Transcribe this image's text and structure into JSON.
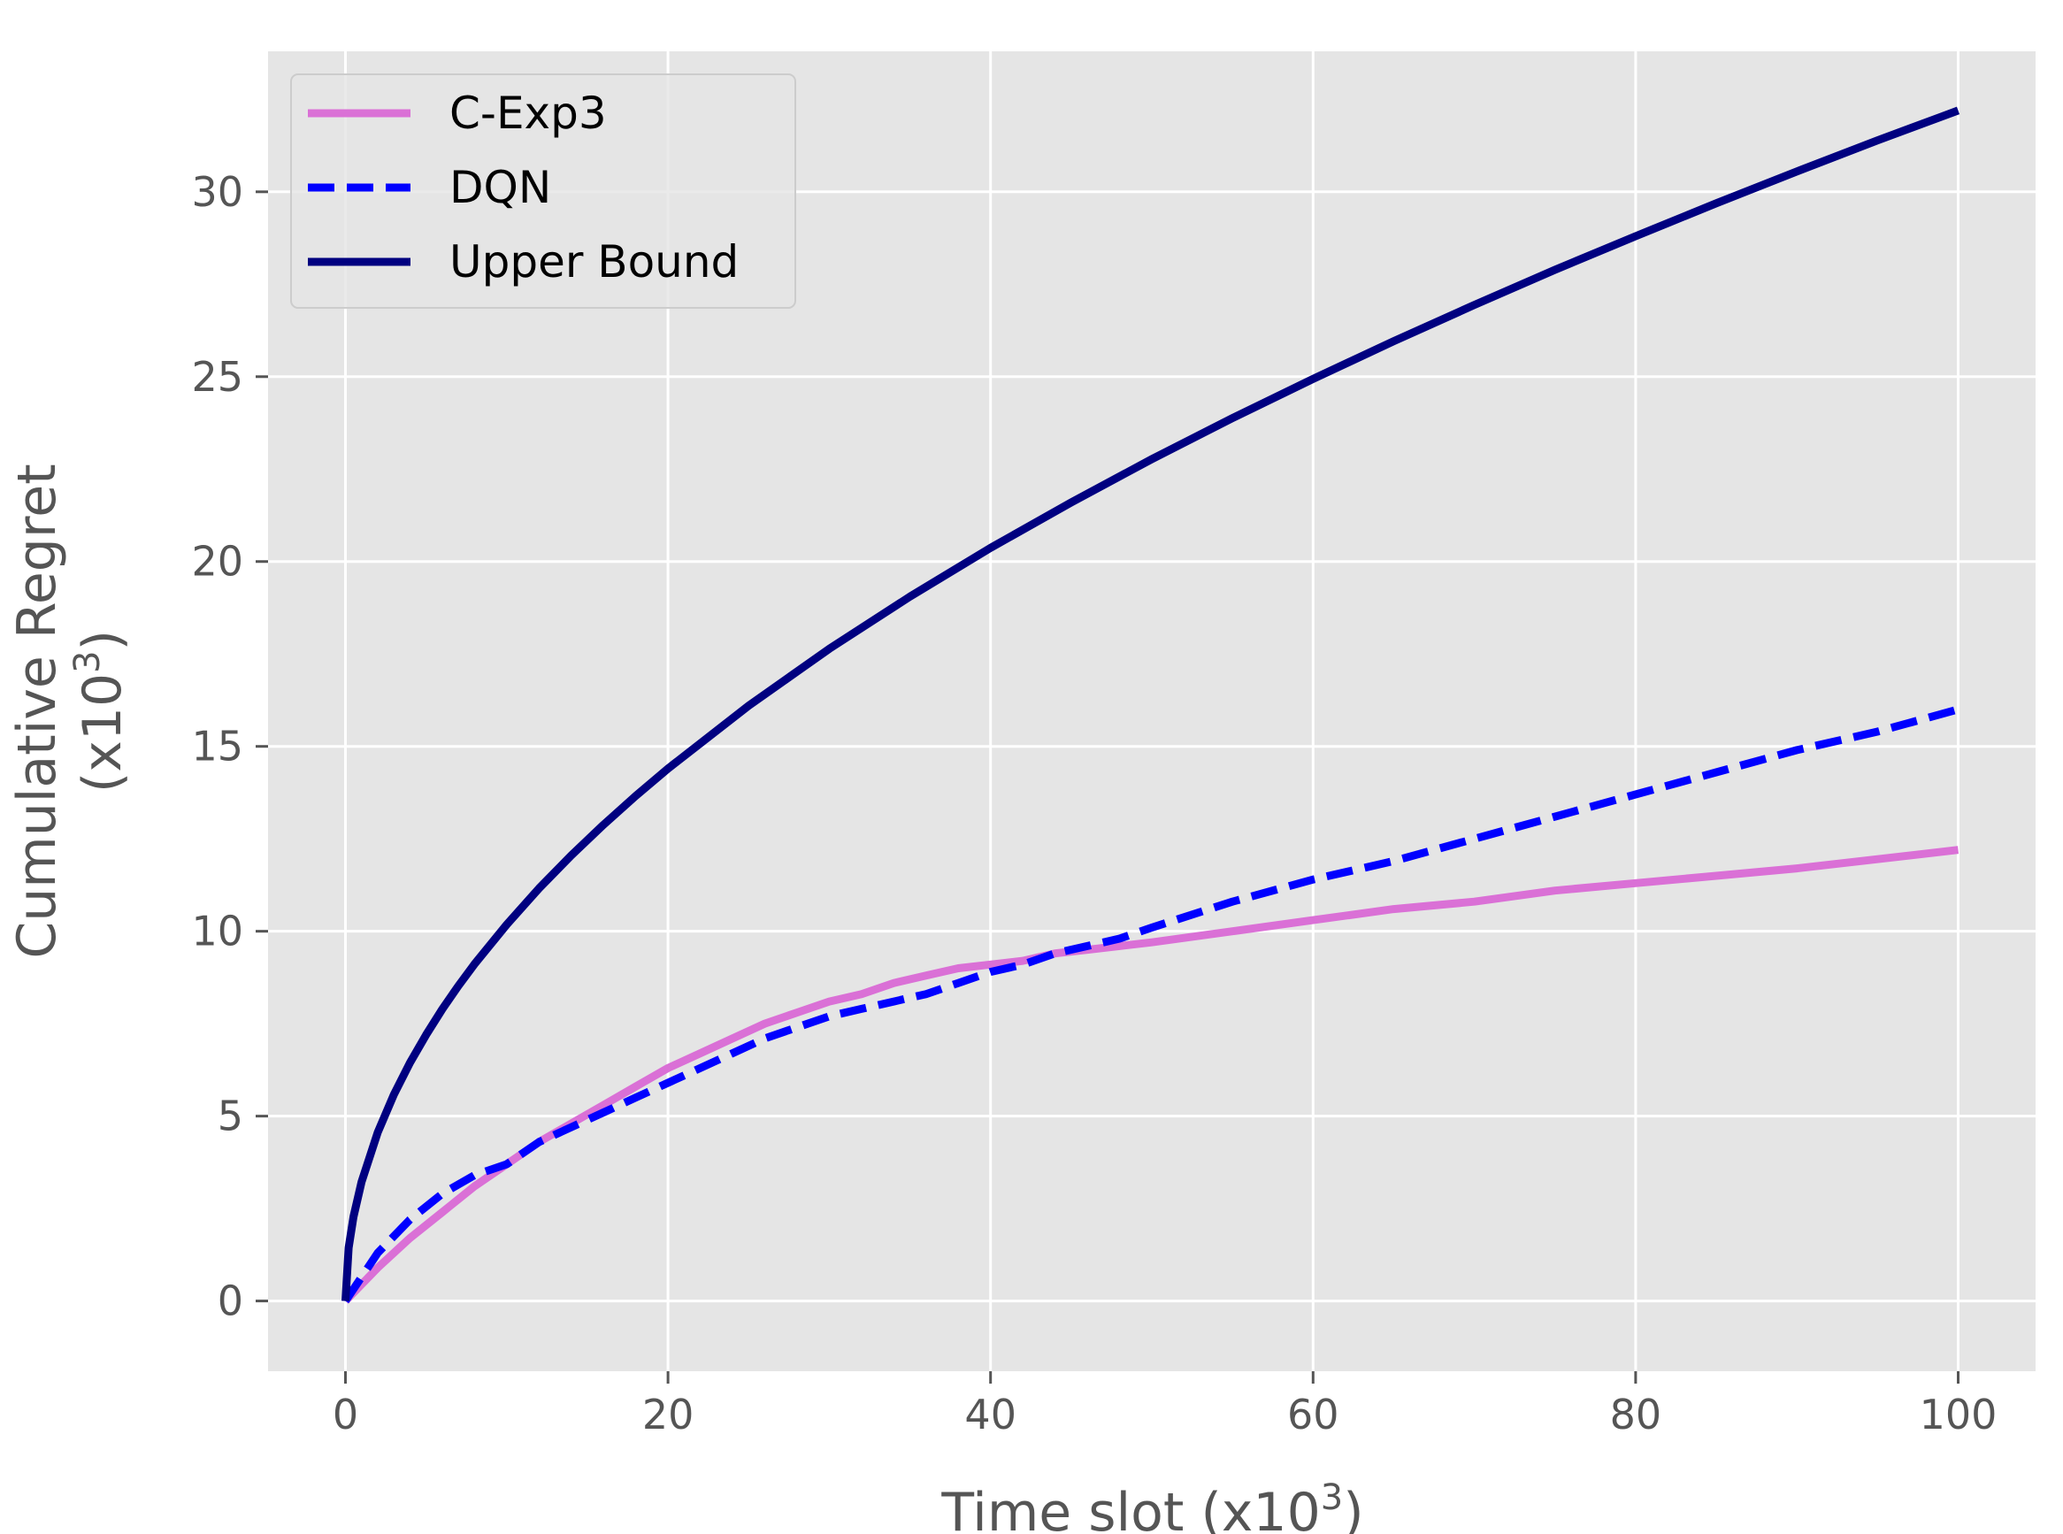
{
  "chart_data": {
    "type": "line",
    "xlabel": {
      "main": "Time slot (x10",
      "sup": "3",
      "end": ")"
    },
    "ylabel": {
      "line1": "Cumulative Regret",
      "line2_main": "(x10",
      "line2_sup": "3",
      "line2_end": ")"
    },
    "xlim": [
      -4.8,
      104.8
    ],
    "ylim": [
      -1.9,
      33.8
    ],
    "xticks": [
      0,
      20,
      40,
      60,
      80,
      100
    ],
    "yticks": [
      0,
      5,
      10,
      15,
      20,
      25,
      30
    ],
    "xtick_labels": [
      "0",
      "20",
      "40",
      "60",
      "80",
      "100"
    ],
    "ytick_labels": [
      "0",
      "5",
      "10",
      "15",
      "20",
      "25",
      "30"
    ],
    "grid": true,
    "legend_position": "top-left",
    "series": [
      {
        "name": "C-Exp3",
        "color": "#DA70D6",
        "style": "solid",
        "x": [
          0,
          2,
          4,
          6,
          8,
          10,
          12,
          14,
          16,
          18,
          20,
          22,
          24,
          26,
          28,
          30,
          32,
          34,
          36,
          38,
          40,
          42,
          44,
          46,
          48,
          50,
          55,
          60,
          65,
          70,
          75,
          80,
          85,
          90,
          95,
          100
        ],
        "y": [
          0,
          0.9,
          1.7,
          2.4,
          3.1,
          3.7,
          4.3,
          4.8,
          5.3,
          5.8,
          6.3,
          6.7,
          7.1,
          7.5,
          7.8,
          8.1,
          8.3,
          8.6,
          8.8,
          9.0,
          9.1,
          9.2,
          9.4,
          9.5,
          9.6,
          9.7,
          10.0,
          10.3,
          10.6,
          10.8,
          11.1,
          11.3,
          11.5,
          11.7,
          11.95,
          12.2
        ]
      },
      {
        "name": "DQN",
        "color": "#0000FF",
        "style": "dashed",
        "x": [
          0,
          2,
          4,
          6,
          8,
          10,
          12,
          14,
          16,
          18,
          20,
          22,
          24,
          26,
          28,
          30,
          32,
          34,
          36,
          38,
          40,
          42,
          44,
          46,
          48,
          50,
          55,
          60,
          65,
          70,
          75,
          80,
          85,
          90,
          95,
          100
        ],
        "y": [
          0,
          1.3,
          2.2,
          2.9,
          3.4,
          3.7,
          4.3,
          4.7,
          5.1,
          5.5,
          5.9,
          6.3,
          6.7,
          7.1,
          7.4,
          7.7,
          7.9,
          8.1,
          8.3,
          8.6,
          8.9,
          9.1,
          9.4,
          9.6,
          9.8,
          10.1,
          10.8,
          11.4,
          11.9,
          12.5,
          13.1,
          13.7,
          14.3,
          14.9,
          15.4,
          16.0
        ]
      },
      {
        "name": "Upper Bound",
        "color": "#000080",
        "style": "solid",
        "x": [
          0,
          0.2,
          0.5,
          1,
          2,
          3,
          4,
          5,
          6,
          7,
          8,
          10,
          12,
          14,
          16,
          18,
          20,
          25,
          30,
          35,
          40,
          45,
          50,
          55,
          60,
          65,
          70,
          75,
          80,
          85,
          90,
          95,
          100
        ],
        "y": [
          0,
          1.44,
          2.28,
          3.22,
          4.56,
          5.58,
          6.44,
          7.2,
          7.89,
          8.52,
          9.11,
          10.18,
          11.16,
          12.05,
          12.88,
          13.66,
          14.4,
          16.1,
          17.64,
          19.05,
          20.37,
          21.6,
          22.77,
          23.88,
          24.94,
          25.96,
          26.94,
          27.89,
          28.8,
          29.69,
          30.55,
          31.39,
          32.2
        ]
      }
    ]
  }
}
